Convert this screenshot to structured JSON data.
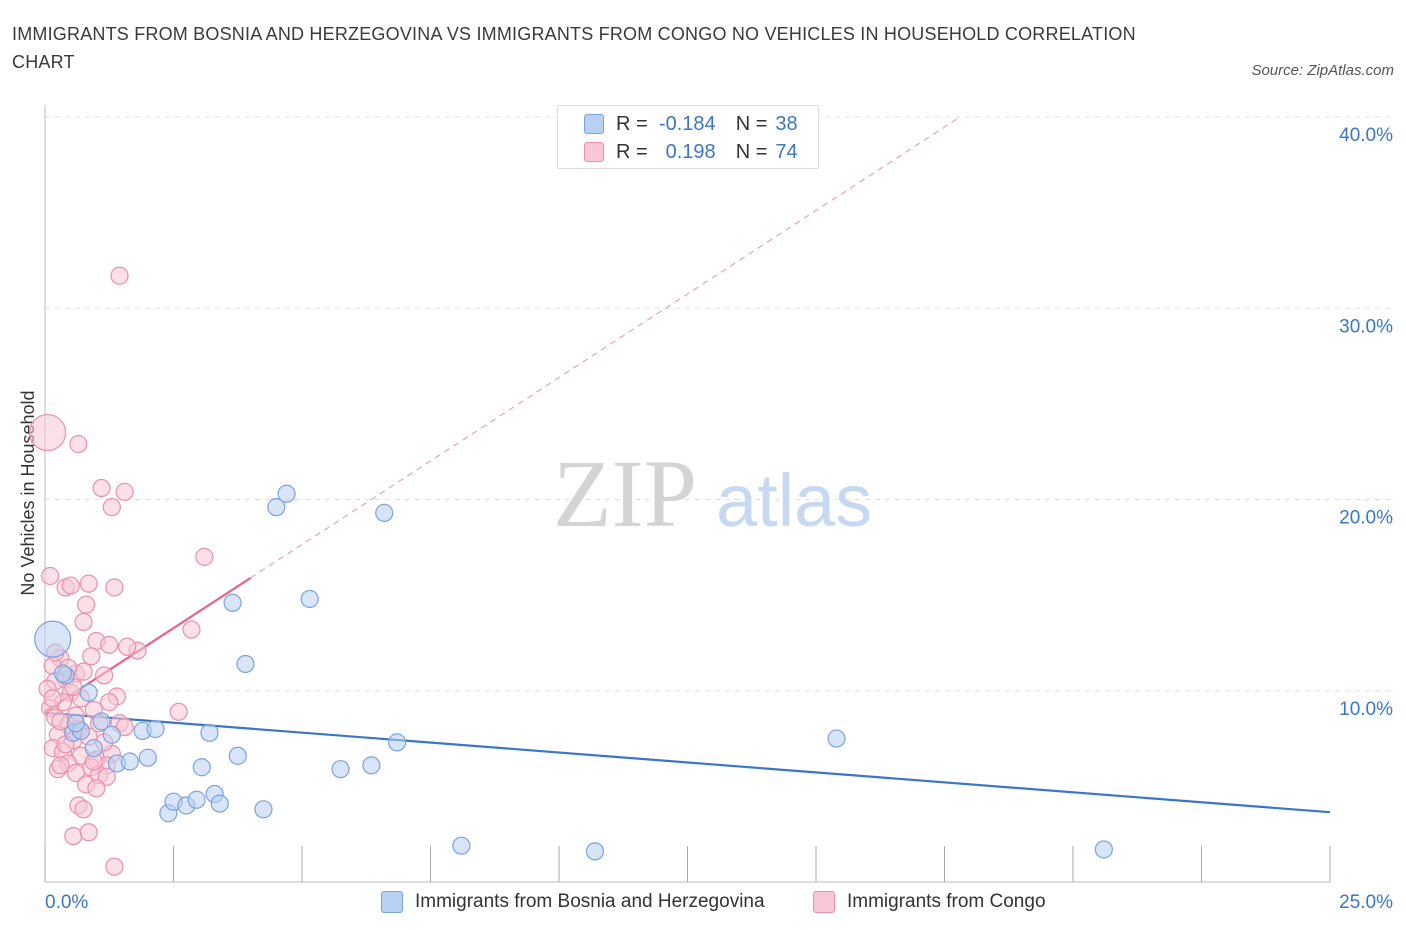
{
  "title": "IMMIGRANTS FROM BOSNIA AND HERZEGOVINA VS IMMIGRANTS FROM CONGO NO VEHICLES IN HOUSEHOLD CORRELATION CHART",
  "source": "Source: ZipAtlas.com",
  "watermark": {
    "zip": "ZIP",
    "atlas": "atlas"
  },
  "legend": {
    "r_label": "R =",
    "n_label": "N =",
    "series1": {
      "r": "-0.184",
      "n": "38"
    },
    "series2": {
      "r": "0.198",
      "n": "74"
    }
  },
  "colors": {
    "blue_fill": "#b8d0f2",
    "blue_stroke": "#7ba3dc",
    "blue_line": "#3a76c8",
    "pink_fill": "#f8c6d6",
    "pink_stroke": "#e990ad",
    "pink_line": "#e8628c",
    "axis_label": "#3a76c8",
    "grid": "#e2e2e2"
  },
  "chart_data": {
    "type": "scatter",
    "title": "IMMIGRANTS FROM BOSNIA AND HERZEGOVINA VS IMMIGRANTS FROM CONGO NO VEHICLES IN HOUSEHOLD CORRELATION CHART",
    "xlabel": "",
    "ylabel": "No Vehicles in Household",
    "xlim": [
      0,
      25
    ],
    "ylim": [
      0,
      40
    ],
    "x_tick_labels": [
      "0.0%",
      "25.0%"
    ],
    "y_tick_labels": [
      "10.0%",
      "20.0%",
      "30.0%",
      "40.0%"
    ],
    "y_ticks": [
      10,
      20,
      30,
      40
    ],
    "grid": true,
    "series": [
      {
        "name": "Immigrants from Bosnia and Herzegovina",
        "color": "#7ba3dc",
        "points": [
          [
            0.15,
            12.7
          ],
          [
            0.4,
            10.8
          ],
          [
            0.55,
            7.8
          ],
          [
            0.7,
            7.9
          ],
          [
            0.85,
            9.9
          ],
          [
            0.95,
            7.0
          ],
          [
            1.1,
            8.4
          ],
          [
            1.3,
            7.7
          ],
          [
            1.4,
            6.2
          ],
          [
            1.65,
            6.3
          ],
          [
            1.9,
            7.9
          ],
          [
            2.0,
            6.5
          ],
          [
            2.15,
            8.0
          ],
          [
            2.4,
            3.6
          ],
          [
            2.5,
            4.2
          ],
          [
            2.75,
            4.0
          ],
          [
            2.95,
            4.3
          ],
          [
            3.05,
            6.0
          ],
          [
            3.2,
            7.8
          ],
          [
            3.3,
            4.6
          ],
          [
            3.4,
            4.1
          ],
          [
            3.65,
            14.6
          ],
          [
            3.75,
            6.6
          ],
          [
            3.9,
            11.4
          ],
          [
            4.25,
            3.8
          ],
          [
            4.5,
            19.6
          ],
          [
            4.7,
            20.3
          ],
          [
            5.15,
            14.8
          ],
          [
            5.75,
            5.9
          ],
          [
            6.35,
            6.1
          ],
          [
            6.6,
            19.3
          ],
          [
            6.85,
            7.3
          ],
          [
            8.1,
            1.9
          ],
          [
            10.7,
            1.6
          ],
          [
            15.4,
            7.5
          ],
          [
            20.6,
            1.7
          ],
          [
            0.35,
            10.9
          ],
          [
            0.6,
            8.3
          ]
        ],
        "trend": {
          "x": [
            0,
            25
          ],
          "y": [
            8.85,
            3.65
          ]
        }
      },
      {
        "name": "Immigrants from Congo",
        "color": "#e990ad",
        "points": [
          [
            0.05,
            23.5
          ],
          [
            0.65,
            22.9
          ],
          [
            1.45,
            31.7
          ],
          [
            1.1,
            20.6
          ],
          [
            1.55,
            20.4
          ],
          [
            1.3,
            19.6
          ],
          [
            3.1,
            17.0
          ],
          [
            0.1,
            16.0
          ],
          [
            0.4,
            15.4
          ],
          [
            0.5,
            15.5
          ],
          [
            0.85,
            15.6
          ],
          [
            1.35,
            15.4
          ],
          [
            0.8,
            14.5
          ],
          [
            0.75,
            13.6
          ],
          [
            2.85,
            13.2
          ],
          [
            1.0,
            12.6
          ],
          [
            1.25,
            12.4
          ],
          [
            1.8,
            12.1
          ],
          [
            0.3,
            11.7
          ],
          [
            0.15,
            11.3
          ],
          [
            0.9,
            11.8
          ],
          [
            0.6,
            10.9
          ],
          [
            0.4,
            10.6
          ],
          [
            0.2,
            10.5
          ],
          [
            1.15,
            10.8
          ],
          [
            0.05,
            10.1
          ],
          [
            0.5,
            9.9
          ],
          [
            0.7,
            9.6
          ],
          [
            0.35,
            9.4
          ],
          [
            0.1,
            9.1
          ],
          [
            0.95,
            9.0
          ],
          [
            1.4,
            9.7
          ],
          [
            2.6,
            8.9
          ],
          [
            0.2,
            8.6
          ],
          [
            0.45,
            8.2
          ],
          [
            0.65,
            8.0
          ],
          [
            1.05,
            8.3
          ],
          [
            0.25,
            7.7
          ],
          [
            0.55,
            7.4
          ],
          [
            0.85,
            7.6
          ],
          [
            1.45,
            8.3
          ],
          [
            0.15,
            7.0
          ],
          [
            0.35,
            6.8
          ],
          [
            0.7,
            6.6
          ],
          [
            1.0,
            6.4
          ],
          [
            1.3,
            6.7
          ],
          [
            0.45,
            6.2
          ],
          [
            0.9,
            6.0
          ],
          [
            1.2,
            6.1
          ],
          [
            0.25,
            5.9
          ],
          [
            0.6,
            5.7
          ],
          [
            1.05,
            5.6
          ],
          [
            1.2,
            5.5
          ],
          [
            0.8,
            5.1
          ],
          [
            1.0,
            4.9
          ],
          [
            0.65,
            4.0
          ],
          [
            0.75,
            3.8
          ],
          [
            0.55,
            2.4
          ],
          [
            0.85,
            2.6
          ],
          [
            1.35,
            0.8
          ],
          [
            0.3,
            8.4
          ],
          [
            0.4,
            7.2
          ],
          [
            1.55,
            8.1
          ],
          [
            0.15,
            9.6
          ],
          [
            0.55,
            10.2
          ],
          [
            0.75,
            11.0
          ],
          [
            1.15,
            7.3
          ],
          [
            0.95,
            6.3
          ],
          [
            0.3,
            6.1
          ],
          [
            0.6,
            8.7
          ],
          [
            1.25,
            9.4
          ],
          [
            0.45,
            11.2
          ],
          [
            0.2,
            12.0
          ],
          [
            1.6,
            12.3
          ]
        ],
        "trend_solid": {
          "x": [
            0,
            4.0
          ],
          "y": [
            8.9,
            15.9
          ]
        },
        "trend_dashed": {
          "x": [
            4.0,
            17.8
          ],
          "y": [
            15.9,
            40.0
          ]
        }
      }
    ],
    "bubble_sizes": {
      "large_blue_point": [
        0.15,
        12.7
      ],
      "large_pink_point": [
        0.05,
        23.5
      ]
    },
    "legend_position": "top-center"
  }
}
